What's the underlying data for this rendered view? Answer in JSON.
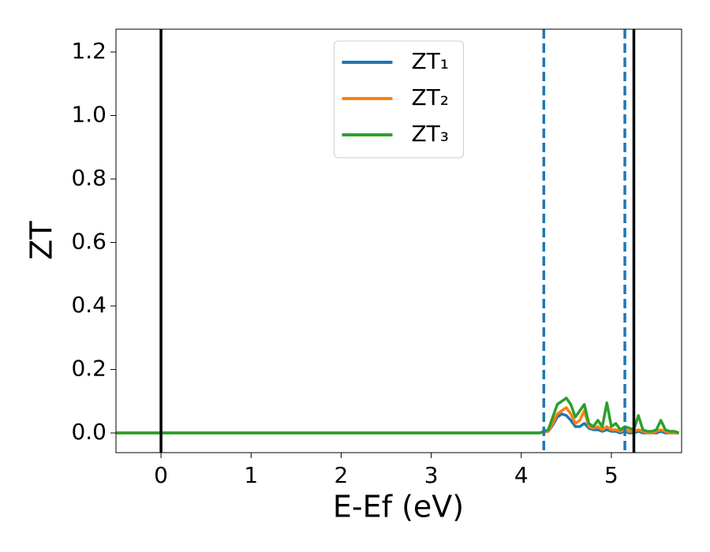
{
  "chart_data": {
    "type": "line",
    "xlabel": "E-Ef (eV)",
    "ylabel": "ZT",
    "xlim": [
      -0.5,
      5.78
    ],
    "ylim": [
      -0.062,
      1.272
    ],
    "xticks": [
      0,
      1,
      2,
      3,
      4,
      5
    ],
    "yticks": [
      {
        "value": 0,
        "label": "0.0"
      },
      0.2,
      0.4,
      0.6,
      0.8,
      {
        "value": 1,
        "label": "1.0"
      },
      1.2
    ],
    "legend": "upper center",
    "vlines": [
      {
        "x": 0,
        "color": "#000000",
        "style": "solid"
      },
      {
        "x": 4.25,
        "color": "#1f77b4",
        "style": "dashed"
      },
      {
        "x": 5.15,
        "color": "#1f77b4",
        "style": "dashed"
      },
      {
        "x": 5.25,
        "color": "#000000",
        "style": "solid"
      }
    ],
    "x": [
      -0.5,
      4.2,
      4.3,
      4.35,
      4.4,
      4.45,
      4.5,
      4.55,
      4.6,
      4.65,
      4.7,
      4.75,
      4.8,
      4.85,
      4.9,
      4.95,
      5.0,
      5.05,
      5.1,
      5.15,
      5.2,
      5.25,
      5.3,
      5.35,
      5.4,
      5.45,
      5.5,
      5.55,
      5.6,
      5.65,
      5.7,
      5.75
    ],
    "series": [
      {
        "name": "ZT₁",
        "color": "#1f77b4",
        "values": [
          0,
          0,
          0.005,
          0.025,
          0.05,
          0.06,
          0.055,
          0.04,
          0.02,
          0.02,
          0.03,
          0.015,
          0.01,
          0.01,
          0.005,
          0.01,
          0.005,
          0.005,
          0,
          0.005,
          0,
          0,
          0.005,
          0,
          0,
          0,
          0,
          0.005,
          0,
          0,
          0,
          0
        ]
      },
      {
        "name": "ZT₂",
        "color": "#ff7f0e",
        "values": [
          0,
          0,
          0.005,
          0.03,
          0.06,
          0.07,
          0.08,
          0.06,
          0.03,
          0.04,
          0.07,
          0.02,
          0.015,
          0.02,
          0.01,
          0.02,
          0.01,
          0.01,
          0.005,
          0.01,
          0.005,
          0.005,
          0.01,
          0.005,
          0,
          0,
          0.005,
          0.01,
          0.005,
          0,
          0,
          0
        ]
      },
      {
        "name": "ZT₃",
        "color": "#2ca02c",
        "values": [
          0,
          0,
          0.01,
          0.05,
          0.09,
          0.1,
          0.11,
          0.09,
          0.05,
          0.07,
          0.09,
          0.03,
          0.02,
          0.04,
          0.02,
          0.095,
          0.02,
          0.03,
          0.01,
          0.02,
          0.015,
          0.01,
          0.055,
          0.01,
          0.005,
          0.005,
          0.01,
          0.04,
          0.01,
          0.005,
          0.005,
          0
        ]
      }
    ]
  }
}
